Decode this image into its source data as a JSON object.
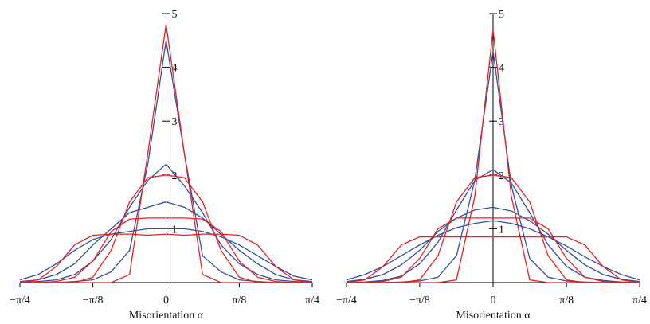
{
  "chart_data": [
    {
      "type": "line",
      "xlabel": "Misorientation α",
      "x": [
        -0.785,
        -0.687,
        -0.589,
        -0.491,
        -0.393,
        -0.295,
        -0.196,
        -0.098,
        0,
        0.098,
        0.196,
        0.295,
        0.393,
        0.491,
        0.589,
        0.687,
        0.785
      ],
      "xlim": [
        -0.785,
        0.785
      ],
      "xticks": [
        {
          "value": -0.785,
          "label": "−π/4"
        },
        {
          "value": -0.393,
          "label": "−π/8"
        },
        0,
        {
          "value": 0.393,
          "label": "π/8"
        },
        {
          "value": 0.785,
          "label": "π/4"
        }
      ],
      "ylim": [
        0,
        5
      ],
      "yticks": [
        1,
        2,
        3,
        4,
        5
      ],
      "series": [
        {
          "color": "#2f4f9f",
          "values": [
            0,
            0,
            0,
            0.02,
            0.05,
            0.2,
            0.6,
            2.2,
            4.5,
            2.4,
            0.5,
            0.2,
            0.05,
            0.02,
            0,
            0,
            0
          ]
        },
        {
          "color": "#2f4f9f",
          "values": [
            0,
            0.02,
            0.05,
            0.15,
            0.4,
            0.8,
            1.4,
            1.9,
            2.2,
            1.8,
            1.3,
            0.7,
            0.35,
            0.15,
            0.05,
            0.02,
            0
          ]
        },
        {
          "color": "#2f4f9f",
          "values": [
            0.02,
            0.05,
            0.15,
            0.35,
            0.7,
            1.0,
            1.3,
            1.4,
            1.5,
            1.4,
            1.2,
            0.9,
            0.6,
            0.35,
            0.15,
            0.05,
            0.02
          ]
        },
        {
          "color": "#2f4f9f",
          "values": [
            0.05,
            0.15,
            0.35,
            0.6,
            0.8,
            0.9,
            0.95,
            1.0,
            1.0,
            1.0,
            0.95,
            0.85,
            0.7,
            0.5,
            0.3,
            0.12,
            0.05
          ]
        },
        {
          "color": "#e8201e",
          "values": [
            0,
            0,
            0,
            0,
            0,
            0,
            0.15,
            2.4,
            4.8,
            2.4,
            0.15,
            0,
            0,
            0,
            0,
            0,
            0
          ]
        },
        {
          "color": "#e8201e",
          "values": [
            0,
            0,
            0,
            0,
            0.1,
            0.6,
            1.5,
            1.95,
            2.0,
            1.95,
            1.5,
            0.6,
            0.1,
            0,
            0,
            0,
            0
          ]
        },
        {
          "color": "#e8201e",
          "values": [
            0,
            0,
            0.02,
            0.1,
            0.4,
            0.95,
            1.18,
            1.2,
            1.2,
            1.2,
            1.18,
            0.95,
            0.4,
            0.1,
            0.02,
            0,
            0
          ]
        },
        {
          "color": "#e8201e",
          "values": [
            0,
            0.05,
            0.3,
            0.7,
            0.88,
            0.9,
            0.9,
            0.88,
            0.9,
            0.88,
            0.9,
            0.9,
            0.88,
            0.7,
            0.3,
            0.05,
            0
          ]
        }
      ]
    },
    {
      "type": "line",
      "xlabel": "Misorientation α",
      "x": [
        -0.785,
        -0.687,
        -0.589,
        -0.491,
        -0.393,
        -0.295,
        -0.196,
        -0.098,
        0,
        0.098,
        0.196,
        0.295,
        0.393,
        0.491,
        0.589,
        0.687,
        0.785
      ],
      "xlim": [
        -0.785,
        0.785
      ],
      "xticks": [
        {
          "value": -0.785,
          "label": "−π/4"
        },
        {
          "value": -0.393,
          "label": "−π/8"
        },
        0,
        {
          "value": 0.393,
          "label": "π/8"
        },
        {
          "value": 0.785,
          "label": "π/4"
        }
      ],
      "ylim": [
        0,
        5
      ],
      "yticks": [
        1,
        2,
        3,
        4,
        5
      ],
      "series": [
        {
          "color": "#2f4f9f",
          "values": [
            0,
            0,
            0,
            0.01,
            0.03,
            0.1,
            0.5,
            1.9,
            4.3,
            1.8,
            0.45,
            0.1,
            0.03,
            0.01,
            0,
            0,
            0
          ]
        },
        {
          "color": "#2f4f9f",
          "values": [
            0,
            0.01,
            0.04,
            0.12,
            0.35,
            0.75,
            1.35,
            1.9,
            2.1,
            1.85,
            1.3,
            0.7,
            0.3,
            0.1,
            0.04,
            0.01,
            0
          ]
        },
        {
          "color": "#2f4f9f",
          "values": [
            0.02,
            0.06,
            0.15,
            0.33,
            0.6,
            0.95,
            1.2,
            1.35,
            1.4,
            1.33,
            1.15,
            0.9,
            0.6,
            0.33,
            0.15,
            0.06,
            0.02
          ]
        },
        {
          "color": "#2f4f9f",
          "values": [
            0.05,
            0.15,
            0.3,
            0.5,
            0.7,
            0.88,
            1.02,
            1.1,
            1.15,
            1.1,
            1.0,
            0.85,
            0.68,
            0.48,
            0.3,
            0.15,
            0.05
          ]
        },
        {
          "color": "#e8201e",
          "values": [
            0,
            0,
            0,
            0,
            0,
            0,
            0.05,
            1.6,
            4.7,
            1.6,
            0.05,
            0,
            0,
            0,
            0,
            0,
            0
          ]
        },
        {
          "color": "#e8201e",
          "values": [
            0,
            0,
            0,
            0,
            0.05,
            0.5,
            1.5,
            1.95,
            2.0,
            1.95,
            1.5,
            0.5,
            0.05,
            0,
            0,
            0,
            0
          ]
        },
        {
          "color": "#e8201e",
          "values": [
            0,
            0,
            0.02,
            0.1,
            0.45,
            1.0,
            1.2,
            1.2,
            1.2,
            1.2,
            1.2,
            1.0,
            0.45,
            0.1,
            0.02,
            0,
            0
          ]
        },
        {
          "color": "#e8201e",
          "values": [
            0,
            0.05,
            0.3,
            0.7,
            0.85,
            0.85,
            0.85,
            0.85,
            0.85,
            0.85,
            0.85,
            0.85,
            0.85,
            0.7,
            0.3,
            0.05,
            0
          ]
        }
      ]
    }
  ]
}
